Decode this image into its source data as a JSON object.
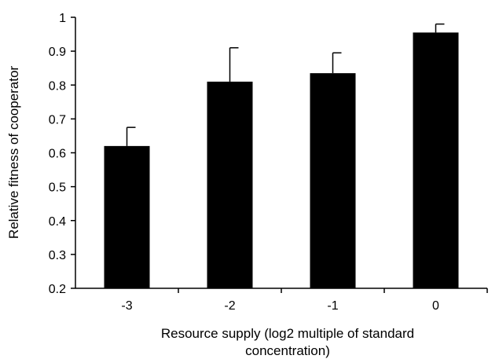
{
  "chart_data": {
    "type": "bar",
    "categories": [
      "-3",
      "-2",
      "-1",
      "0"
    ],
    "values": [
      0.62,
      0.81,
      0.835,
      0.955
    ],
    "error": [
      0.055,
      0.1,
      0.06,
      0.025
    ],
    "xlabel_lines": [
      "Resource supply (log2 multiple of standard",
      "concentration)"
    ],
    "ylabel": "Relative fitness of cooperator",
    "ylim": [
      0.2,
      1
    ],
    "yticks": [
      "0.2",
      "0.3",
      "0.4",
      "0.5",
      "0.6",
      "0.7",
      "0.8",
      "0.9",
      "1"
    ],
    "grid": false,
    "bar_color": "#000000"
  }
}
